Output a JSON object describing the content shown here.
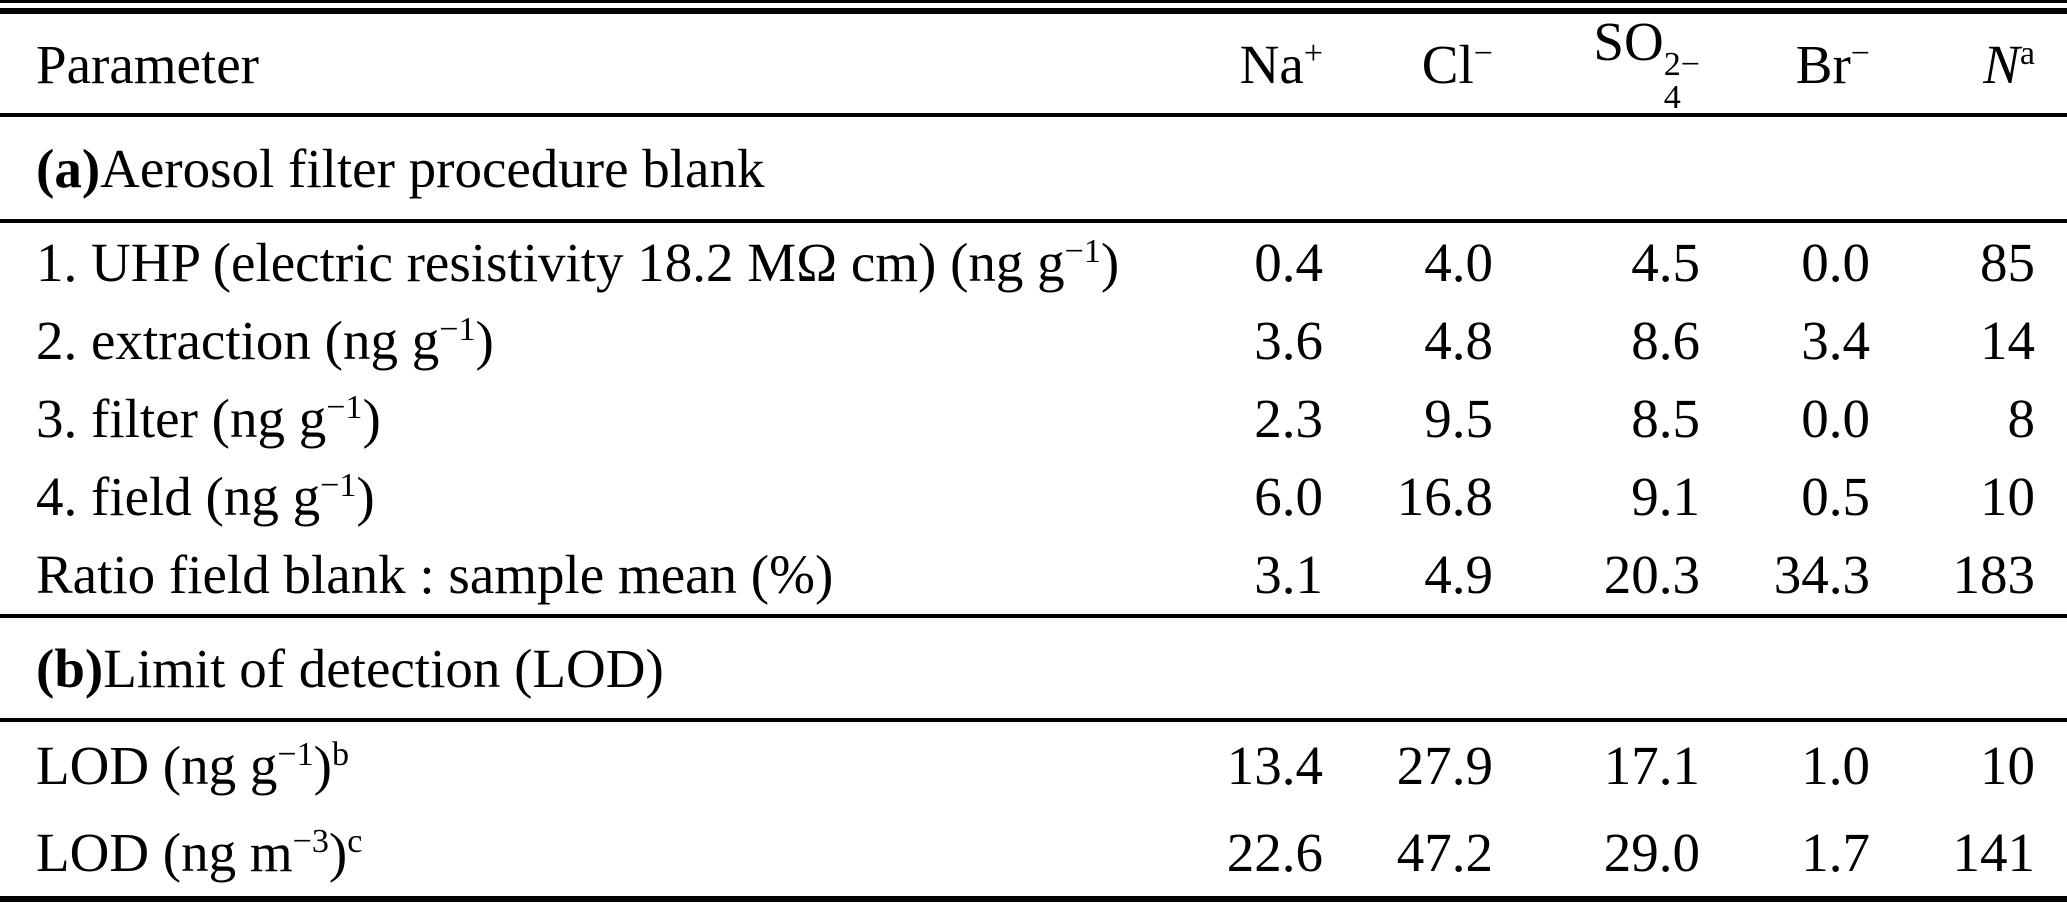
{
  "table": {
    "header": {
      "parameter": "Parameter",
      "ions": [
        {
          "name": "sodium",
          "segs": [
            {
              "t": "Na"
            },
            {
              "t": "+",
              "v": "sup"
            }
          ]
        },
        {
          "name": "chloride",
          "segs": [
            {
              "t": "Cl"
            },
            {
              "t": "−",
              "v": "sup"
            }
          ]
        },
        {
          "name": "sulfate",
          "segs": [
            {
              "t": "SO"
            },
            {
              "v": "stack",
              "sup": "2−",
              "sub": "4"
            }
          ]
        },
        {
          "name": "bromide",
          "segs": [
            {
              "t": "Br"
            },
            {
              "t": "−",
              "v": "sup"
            }
          ]
        },
        {
          "name": "n-count",
          "segs": [
            {
              "t": "N",
              "v": "i"
            },
            {
              "t": "a",
              "v": "sup"
            }
          ]
        }
      ]
    },
    "sections": [
      {
        "heading_segs": [
          {
            "t": "(a)",
            "v": "b"
          },
          {
            "t": " Aerosol filter procedure blank"
          }
        ],
        "rows": [
          {
            "label_segs": [
              {
                "t": "1. UHP (electric resistivity 18.2 MΩ cm) (ng g"
              },
              {
                "t": "−1",
                "v": "sup"
              },
              {
                "t": ")"
              }
            ],
            "values": [
              "0.4",
              "4.0",
              "4.5",
              "0.0",
              "85"
            ]
          },
          {
            "label_segs": [
              {
                "t": "2. extraction (ng g"
              },
              {
                "t": "−1",
                "v": "sup"
              },
              {
                "t": ")"
              }
            ],
            "values": [
              "3.6",
              "4.8",
              "8.6",
              "3.4",
              "14"
            ]
          },
          {
            "label_segs": [
              {
                "t": "3. filter (ng g"
              },
              {
                "t": "−1",
                "v": "sup"
              },
              {
                "t": ")"
              }
            ],
            "values": [
              "2.3",
              "9.5",
              "8.5",
              "0.0",
              "8"
            ]
          },
          {
            "label_segs": [
              {
                "t": "4. field (ng g"
              },
              {
                "t": "−1",
                "v": "sup"
              },
              {
                "t": ")"
              }
            ],
            "values": [
              "6.0",
              "16.8",
              "9.1",
              "0.5",
              "10"
            ]
          },
          {
            "label_segs": [
              {
                "t": "Ratio field blank : sample mean (%)"
              }
            ],
            "values": [
              "3.1",
              "4.9",
              "20.3",
              "34.3",
              "183"
            ]
          }
        ]
      },
      {
        "heading_segs": [
          {
            "t": "(b)",
            "v": "b"
          },
          {
            "t": " Limit of detection (LOD)"
          }
        ],
        "rows": [
          {
            "label_segs": [
              {
                "t": "LOD (ng g"
              },
              {
                "t": "−1",
                "v": "sup"
              },
              {
                "t": ")"
              },
              {
                "t": "b",
                "v": "sup"
              }
            ],
            "values": [
              "13.4",
              "27.9",
              "17.1",
              "1.0",
              "10"
            ]
          },
          {
            "label_segs": [
              {
                "t": "LOD (ng m"
              },
              {
                "t": "−3",
                "v": "sup"
              },
              {
                "t": ")"
              },
              {
                "t": "c",
                "v": "sup"
              }
            ],
            "values": [
              "22.6",
              "47.2",
              "29.0",
              "1.7",
              "141"
            ]
          }
        ]
      }
    ]
  },
  "chart_data": {
    "type": "table",
    "columns": [
      "Parameter",
      "Na+",
      "Cl-",
      "SO4^2-",
      "Br-",
      "N^a"
    ],
    "sections": [
      {
        "heading": "(a) Aerosol filter procedure blank",
        "rows": [
          {
            "parameter": "1. UHP (electric resistivity 18.2 MΩ cm) (ng g^-1)",
            "values": [
              "0.4",
              "4.0",
              "4.5",
              "0.0",
              "85"
            ]
          },
          {
            "parameter": "2. extraction (ng g^-1)",
            "values": [
              "3.6",
              "4.8",
              "8.6",
              "3.4",
              "14"
            ]
          },
          {
            "parameter": "3. filter (ng g^-1)",
            "values": [
              "2.3",
              "9.5",
              "8.5",
              "0.0",
              "8"
            ]
          },
          {
            "parameter": "4. field (ng g^-1)",
            "values": [
              "6.0",
              "16.8",
              "9.1",
              "0.5",
              "10"
            ]
          },
          {
            "parameter": "Ratio field blank : sample mean (%)",
            "values": [
              "3.1",
              "4.9",
              "20.3",
              "34.3",
              "183"
            ]
          }
        ]
      },
      {
        "heading": "(b) Limit of detection (LOD)",
        "rows": [
          {
            "parameter": "LOD (ng g^-1)^b",
            "values": [
              "13.4",
              "27.9",
              "17.1",
              "1.0",
              "10"
            ]
          },
          {
            "parameter": "LOD (ng m^-3)^c",
            "values": [
              "22.6",
              "47.2",
              "29.0",
              "1.7",
              "141"
            ]
          }
        ]
      }
    ],
    "colors": {
      "text": "#000000",
      "background": "#ffffff",
      "rule": "#000000"
    }
  }
}
